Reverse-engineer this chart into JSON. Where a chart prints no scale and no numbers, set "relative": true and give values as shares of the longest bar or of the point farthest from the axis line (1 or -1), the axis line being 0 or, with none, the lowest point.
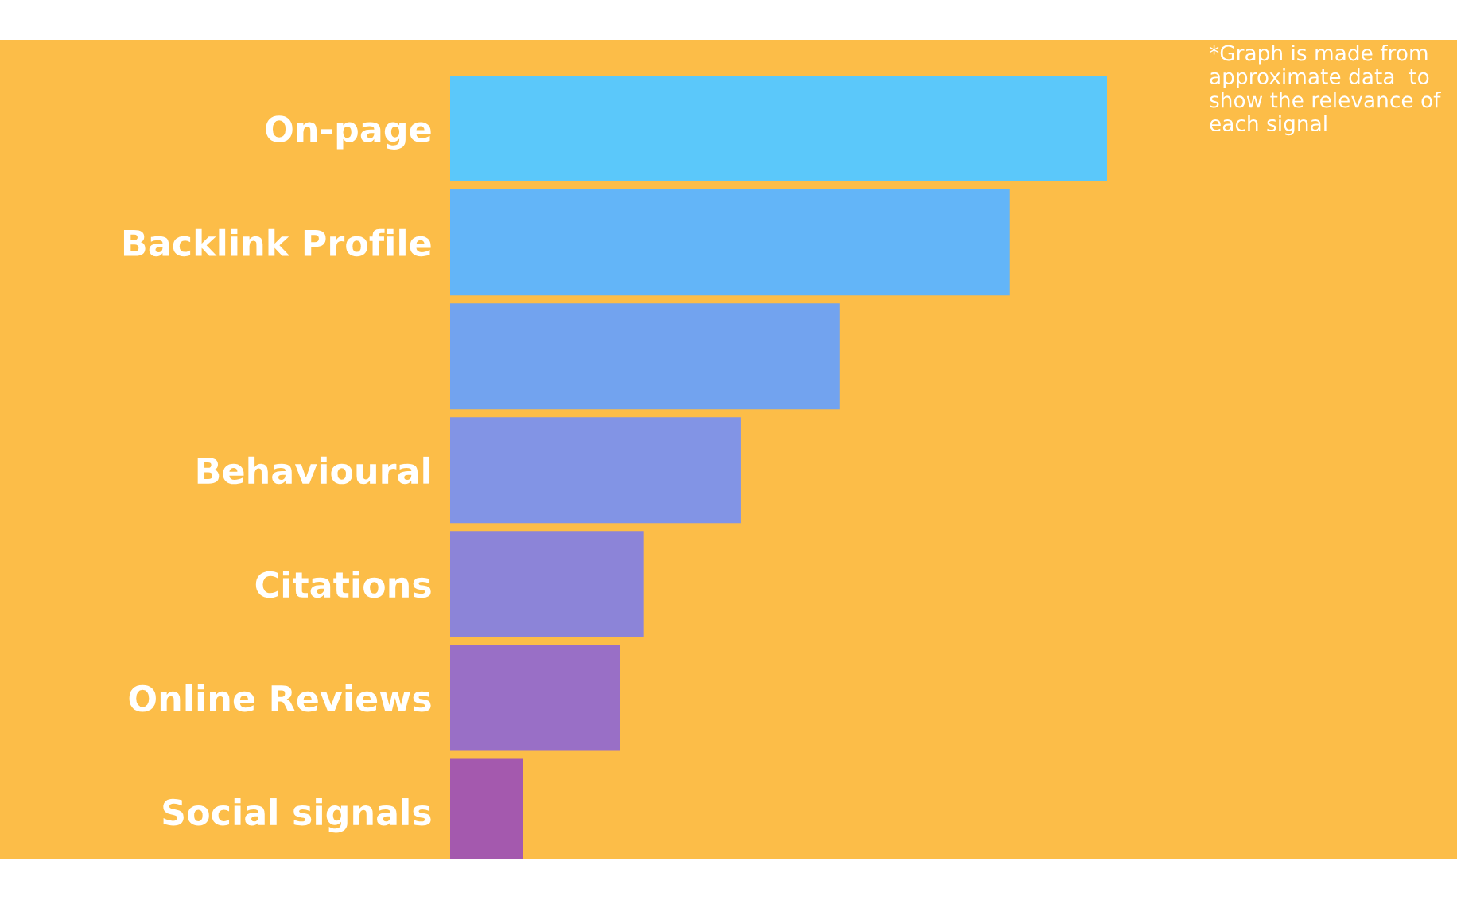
{
  "chart_data": {
    "type": "bar",
    "orientation": "horizontal",
    "relative": true,
    "categories": [
      "On-page",
      "Backlink Profile",
      null,
      "Behavioural",
      "Citations",
      "Online Reviews",
      "Social signals"
    ],
    "values": [
      1,
      0.852,
      0.593,
      0.443,
      0.295,
      0.259,
      0.111
    ],
    "colors": [
      "#5bc8fa",
      "#63b5f8",
      "#72a3ef",
      "#8294e5",
      "#8c84d8",
      "#996fc6",
      "#a459ae"
    ],
    "annotations": [
      "*Graph is made from approximate data  to show the relevance of each signal"
    ]
  }
}
